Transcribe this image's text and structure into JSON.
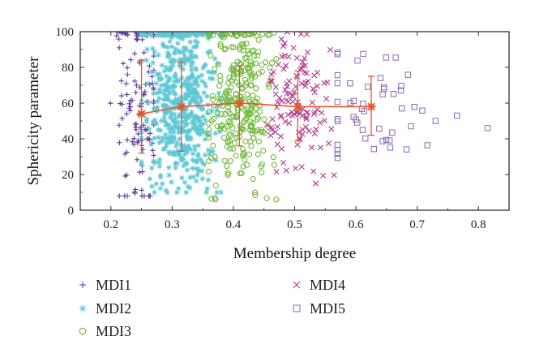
{
  "chart_data": {
    "type": "scatter",
    "xlabel": "Membership degree",
    "ylabel": "Sphericity parameter",
    "xlim": [
      0.15,
      0.85
    ],
    "ylim": [
      0,
      100
    ],
    "xticks": [
      "0.2",
      "0.3",
      "0.4",
      "0.5",
      "0.6",
      "0.7",
      "0.8"
    ],
    "yticks": [
      "0",
      "20",
      "40",
      "60",
      "80",
      "100"
    ],
    "grid": false,
    "legend_placement": "bottom",
    "series": [
      {
        "name": "MDI1",
        "marker": "plus",
        "color": "#5b3f9a",
        "x_range": [
          0.18,
          0.27
        ],
        "y_range": [
          8,
          100
        ]
      },
      {
        "name": "MDI2",
        "marker": "asterisk",
        "color": "#5fc8d6",
        "x_range": [
          0.25,
          0.38
        ],
        "y_range": [
          10,
          100
        ]
      },
      {
        "name": "MDI3",
        "marker": "circle",
        "color": "#72b83c",
        "x_range": [
          0.36,
          0.47
        ],
        "y_range": [
          6,
          100
        ]
      },
      {
        "name": "MDI4",
        "marker": "x",
        "color": "#b23a8e",
        "x_range": [
          0.45,
          0.57
        ],
        "y_range": [
          15,
          100
        ]
      },
      {
        "name": "MDI5",
        "marker": "square",
        "color": "#8e67b8",
        "x_range": [
          0.57,
          0.82
        ],
        "y_range": [
          20,
          98
        ]
      }
    ],
    "mean_line": {
      "color": "#e8552a",
      "points": [
        {
          "x": 0.25,
          "y": 54,
          "low": 32,
          "high": 84
        },
        {
          "x": 0.315,
          "y": 58,
          "low": 33,
          "high": 83
        },
        {
          "x": 0.41,
          "y": 60,
          "low": 36,
          "high": 81
        },
        {
          "x": 0.505,
          "y": 58,
          "low": 39,
          "high": 78
        },
        {
          "x": 0.625,
          "y": 58,
          "low": 42,
          "high": 75
        }
      ]
    }
  }
}
